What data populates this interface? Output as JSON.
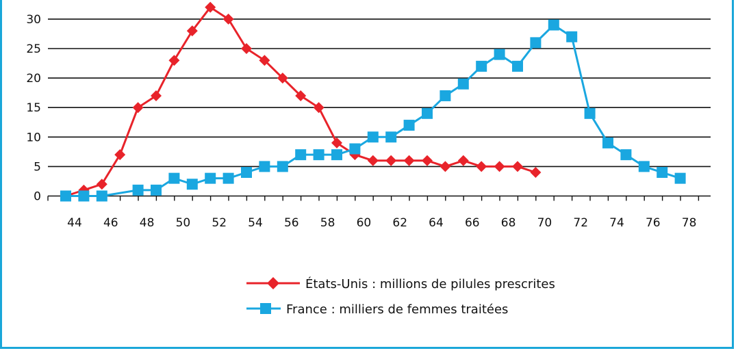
{
  "chart_data": {
    "type": "line",
    "title": "",
    "xlabel": "",
    "ylabel": "",
    "xlim": [
      43,
      79
    ],
    "ylim": [
      0,
      32
    ],
    "x_ticks": [
      44,
      46,
      48,
      50,
      52,
      54,
      56,
      58,
      60,
      62,
      64,
      66,
      68,
      70,
      72,
      74,
      76,
      78
    ],
    "y_ticks": [
      0,
      5,
      10,
      15,
      20,
      25,
      30
    ],
    "grid": "horizontal",
    "legend_position": "bottom-center",
    "series": [
      {
        "name": "États-Unis : millions de pilules prescrites",
        "color": "#e8232a",
        "marker": "diamond",
        "x": [
          44,
          45,
          46,
          47,
          48,
          49,
          50,
          51,
          52,
          53,
          54,
          55,
          56,
          57,
          58,
          59,
          60,
          61,
          62,
          63,
          64,
          65,
          66,
          67,
          68,
          69,
          70
        ],
        "y": [
          0,
          1,
          2,
          7,
          15,
          17,
          23,
          28,
          32,
          30,
          25,
          23,
          20,
          17,
          15,
          9,
          7,
          6,
          6,
          6,
          6,
          5,
          6,
          5,
          5,
          5,
          4
        ]
      },
      {
        "name": "France : milliers de femmes traitées",
        "color": "#1aa7e0",
        "marker": "square",
        "x": [
          44,
          45,
          46,
          48,
          49,
          50,
          51,
          52,
          53,
          54,
          55,
          56,
          57,
          58,
          59,
          60,
          61,
          62,
          63,
          64,
          65,
          66,
          67,
          68,
          69,
          70,
          71,
          72,
          73,
          74,
          75,
          76,
          77,
          78
        ],
        "y": [
          0,
          0,
          0,
          1,
          1,
          3,
          2,
          3,
          3,
          4,
          5,
          5,
          7,
          7,
          7,
          8,
          10,
          10,
          12,
          14,
          17,
          19,
          22,
          24,
          22,
          26,
          29,
          27,
          14,
          9,
          7,
          5,
          4,
          3
        ]
      }
    ]
  }
}
